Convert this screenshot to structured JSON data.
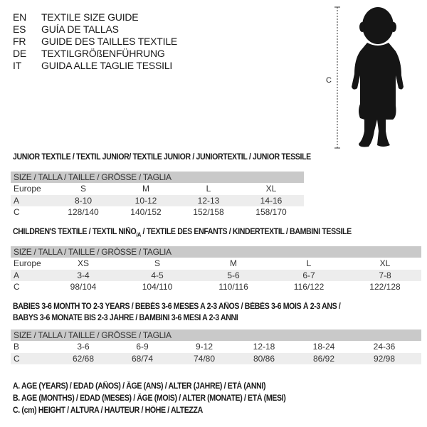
{
  "header": {
    "languages": [
      {
        "code": "EN",
        "label": "TEXTILE SIZE GUIDE"
      },
      {
        "code": "ES",
        "label": "GUÍA DE TALLAS"
      },
      {
        "code": "FR",
        "label": "GUIDE DES TAILLES TEXTILE"
      },
      {
        "code": "DE",
        "label": "TEXTILGRÖßENFÜHRUNG"
      },
      {
        "code": "IT",
        "label": "GUIDA ALLE TAGLIE TESSILI"
      }
    ]
  },
  "figure": {
    "measure_label": "C"
  },
  "junior": {
    "title": "JUNIOR TEXTILE / TEXTIL JUNIOR/ TEXTILE JUNIOR / JUNIORTEXTIL / JUNIOR TESSILE",
    "header": "SIZE / TALLA / TAILLE / GRÖSSE / TAGLIA",
    "rows": [
      {
        "label": "Europe",
        "values": [
          "S",
          "M",
          "L",
          "XL"
        ]
      },
      {
        "label": "A",
        "values": [
          "8-10",
          "10-12",
          "12-13",
          "14-16"
        ]
      },
      {
        "label": "C",
        "values": [
          "128/140",
          "140/152",
          "152/158",
          "158/170"
        ]
      }
    ]
  },
  "children": {
    "title": "CHILDREN'S TEXTILE / TEXTIL NIÑO",
    "title_sub": "/A",
    "title_rest": " / TEXTILE DES ENFANTS / KINDERTEXTIL / BAMBINI TESSILE",
    "header": "SIZE / TALLA / TAILLE / GRÖSSE / TAGLIA",
    "rows": [
      {
        "label": "Europe",
        "values": [
          "XS",
          "S",
          "M",
          "L",
          "XL"
        ]
      },
      {
        "label": "A",
        "values": [
          "3-4",
          "4-5",
          "5-6",
          "6-7",
          "7-8"
        ]
      },
      {
        "label": "C",
        "values": [
          "98/104",
          "104/110",
          "110/116",
          "116/122",
          "122/128"
        ]
      }
    ]
  },
  "babies": {
    "title_line1": "BABIES 3-6 MONTH TO 2-3 YEARS / BEBÉS 3-6 MESES A 2-3 AÑOS / BÉBÉS 3-6 MOIS À 2-3 ANS /",
    "title_line2": "BABYS 3-6 MONATE BIS 2-3 JAHRE / BAMBINI 3-6 MESI A 2-3 ANNI",
    "header": "SIZE / TALLA / TAILLE / GRÖSSE / TAGLIA",
    "rows": [
      {
        "label": "B",
        "values": [
          "3-6",
          "6-9",
          "9-12",
          "12-18",
          "18-24",
          "24-36"
        ]
      },
      {
        "label": "C",
        "values": [
          "62/68",
          "68/74",
          "74/80",
          "80/86",
          "86/92",
          "92/98"
        ]
      }
    ]
  },
  "legend": [
    "A. AGE (YEARS) / EDAD (AÑOS) / ÂGE (ANS) / ALTER (JAHRE) / ETÀ (ANNI)",
    "B. AGE (MONTHS) / EDAD (MESES) / ÂGE (MOIS) / ALTER (MONATE) / ETÀ (MESI)",
    "C. (cm) HEIGHT / ALTURA / HAUTEUR / HÖHE / ALTEZZA"
  ],
  "colors": {
    "header_bar": "#c9c9c9",
    "row_shade": "#ededed",
    "text": "#1a1a1a"
  }
}
